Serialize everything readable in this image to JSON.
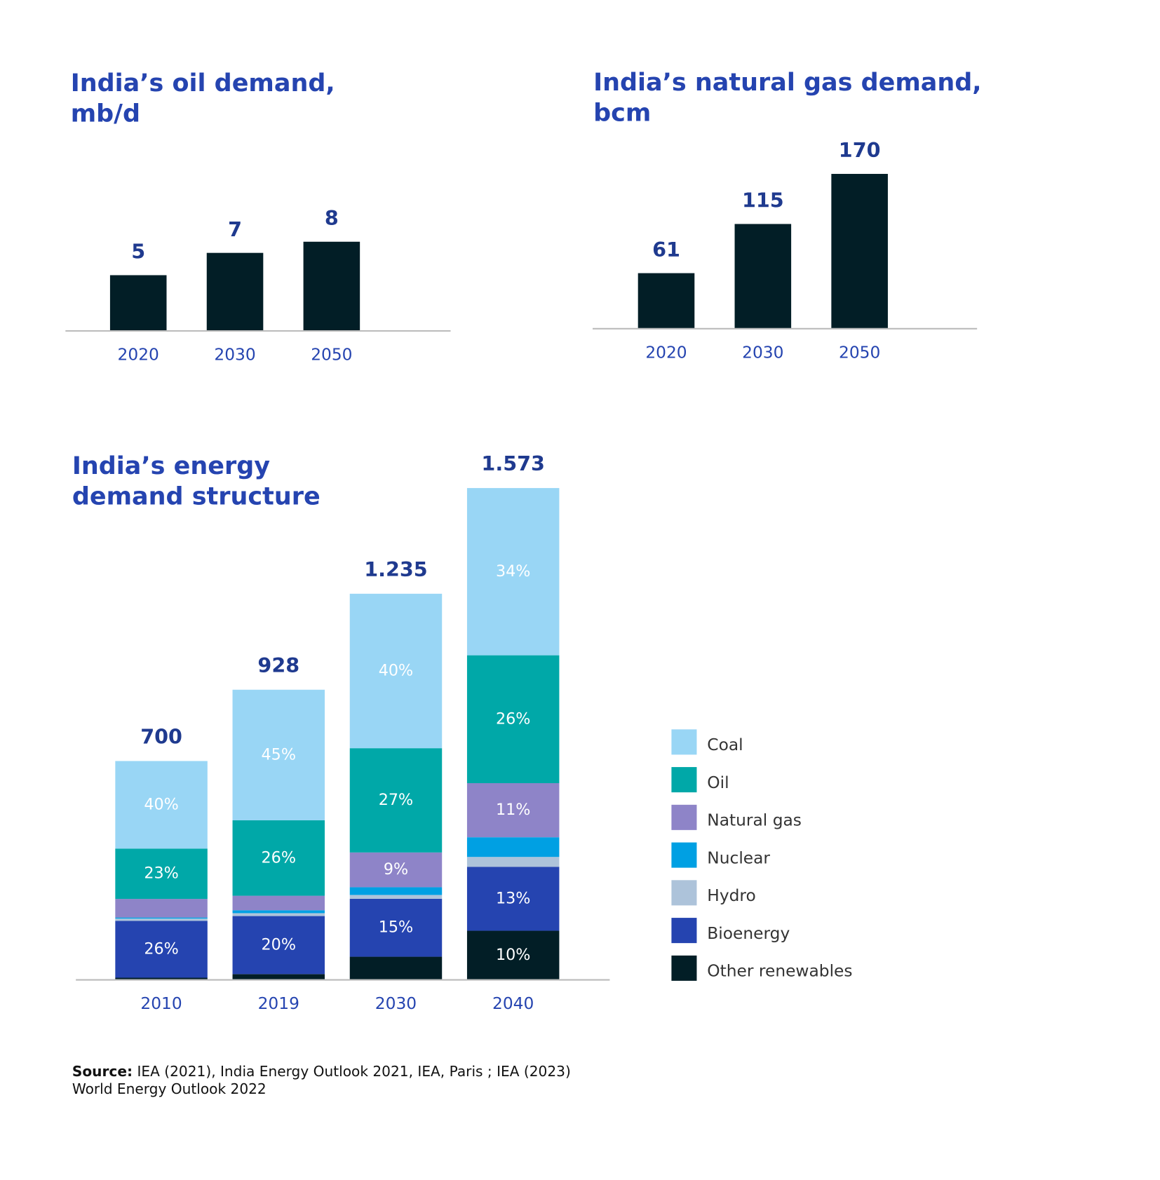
{
  "chart_data": [
    {
      "type": "bar",
      "title": [
        "India’s oil demand,",
        "mb/d"
      ],
      "categories": [
        "2020",
        "2030",
        "2050"
      ],
      "values": [
        5,
        7,
        8
      ],
      "color": "#021e26",
      "ylim": [
        0,
        12
      ]
    },
    {
      "type": "bar",
      "title": [
        "India’s natural gas demand,",
        "bcm"
      ],
      "categories": [
        "2020",
        "2030",
        "2050"
      ],
      "values": [
        61,
        115,
        170
      ],
      "color": "#021e26",
      "ylim": [
        0,
        200
      ]
    },
    {
      "type": "stacked_bar",
      "title": [
        "India’s energy",
        "demand structure"
      ],
      "categories": [
        "2010",
        "2019",
        "2030",
        "2040"
      ],
      "totals": {
        "values": [
          700,
          928,
          1235,
          1573
        ],
        "value_labels": [
          "700",
          "928",
          "1.235",
          "1.573"
        ]
      },
      "ylim": [
        0,
        1600
      ],
      "series": [
        {
          "name": "Other renewables",
          "color": "#021e26",
          "values": [
            1,
            2,
            6,
            10
          ],
          "value_labels": [
            null,
            null,
            null,
            "10%"
          ]
        },
        {
          "name": "Bioenergy",
          "color": "#2544b0",
          "values": [
            26,
            20,
            15,
            13
          ],
          "value_labels": [
            "26%",
            "20%",
            "15%",
            "13%"
          ]
        },
        {
          "name": "Hydro",
          "color": "#adc3da",
          "values": [
            1,
            1,
            1,
            2
          ],
          "value_labels": [
            null,
            null,
            null,
            null
          ]
        },
        {
          "name": "Nuclear",
          "color": "#00a0e3",
          "values": [
            0.5,
            1,
            2,
            4
          ],
          "value_labels": [
            null,
            null,
            null,
            null
          ]
        },
        {
          "name": "Natural gas",
          "color": "#8e84c8",
          "values": [
            8.5,
            5,
            9,
            11
          ],
          "value_labels": [
            null,
            null,
            "9%",
            "11%"
          ]
        },
        {
          "name": "Oil",
          "color": "#00a8a8",
          "values": [
            23,
            26,
            27,
            26
          ],
          "value_labels": [
            "23%",
            "26%",
            "27%",
            "26%"
          ]
        },
        {
          "name": "Coal",
          "color": "#99d6f5",
          "values": [
            40,
            45,
            40,
            34
          ],
          "value_labels": [
            "40%",
            "45%",
            "40%",
            "34%"
          ]
        }
      ]
    }
  ],
  "source": {
    "label": "Source:",
    "lines": [
      "IEA (2021), India Energy Outlook 2021, IEA, Paris ; IEA (2023)",
      "World Energy Outlook 2022"
    ]
  }
}
